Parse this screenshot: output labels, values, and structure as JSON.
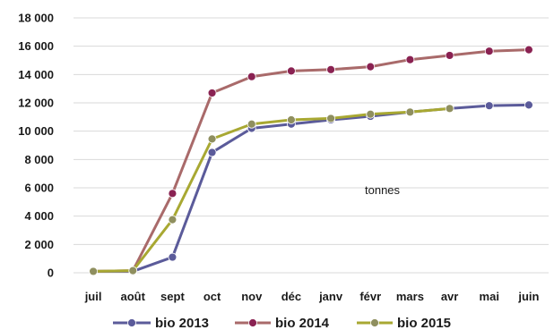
{
  "chart_data": {
    "type": "line",
    "categories": [
      "juil",
      "août",
      "sept",
      "oct",
      "nov",
      "déc",
      "janv",
      "févr",
      "mars",
      "avr",
      "mai",
      "juin"
    ],
    "ylim": [
      0,
      18000
    ],
    "yticks": [
      0,
      2000,
      4000,
      6000,
      8000,
      10000,
      12000,
      14000,
      16000,
      18000
    ],
    "ytick_labels": [
      "0",
      "2 000",
      "4 000",
      "6 000",
      "8 000",
      "10 000",
      "12 000",
      "14 000",
      "16 000",
      "18 000"
    ],
    "grid": "horizontal",
    "legend_position": "bottom",
    "annotation": "tonnes",
    "series": [
      {
        "name": "bio 2013",
        "color": "#5b5b9a",
        "values": [
          100,
          100,
          1100,
          8500,
          10200,
          10500,
          10800,
          11050,
          11350,
          11600,
          11800,
          11850
        ]
      },
      {
        "name": "bio 2014",
        "color": "#8a2252",
        "line_color": "#a96a6a",
        "values": [
          100,
          150,
          5600,
          12700,
          13850,
          14250,
          14350,
          14550,
          15050,
          15350,
          15650,
          15750
        ]
      },
      {
        "name": "bio 2015",
        "color": "#8f8f5f",
        "line_color": "#a8a832",
        "values": [
          100,
          150,
          3750,
          9450,
          10500,
          10800,
          10900,
          11200,
          11350,
          11600,
          null,
          null
        ]
      }
    ]
  }
}
